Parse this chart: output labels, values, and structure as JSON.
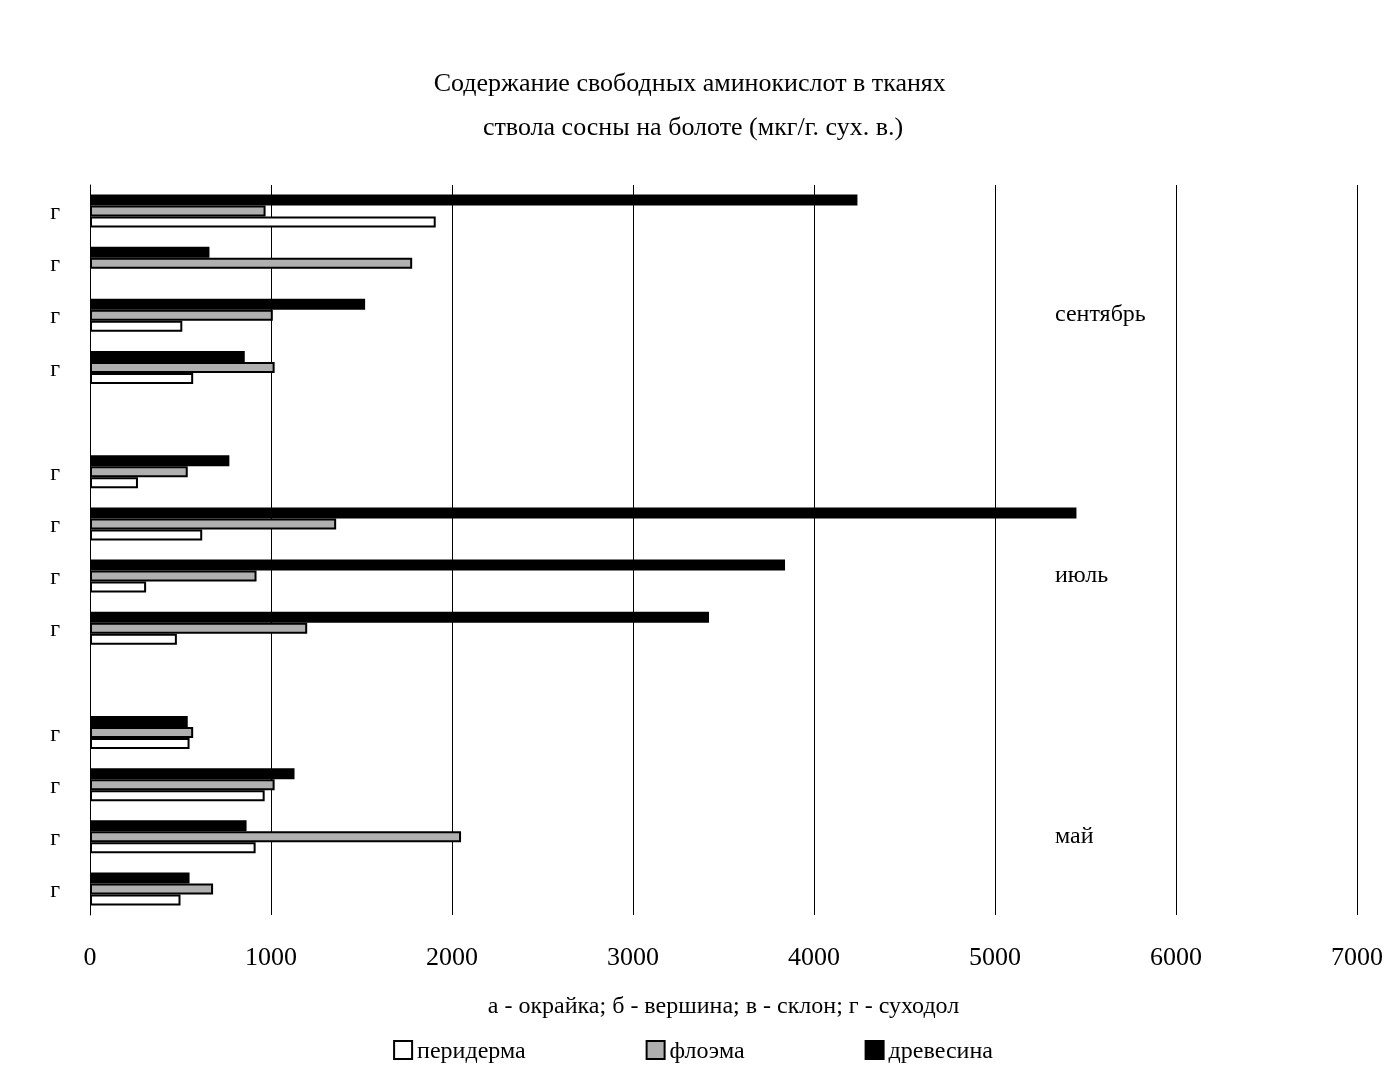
{
  "chart_data": {
    "type": "bar",
    "orientation": "horizontal",
    "title": "Содержание свободных аминокислот в тканях ствола сосны на болоте (мкг/г. сух. в.)",
    "xlabel": "а - окрайка; б - вершина; в - склон; г - суходол",
    "categories": [
      "г",
      "г",
      "г",
      "г",
      null,
      "г",
      "г",
      "г",
      "г",
      null,
      "г",
      "г",
      "г",
      "г"
    ],
    "series": [
      {
        "name": "перидерма",
        "color": "#ffffff",
        "values": [
          1910,
          null,
          510,
          570,
          null,
          265,
          620,
          310,
          480,
          null,
          550,
          965,
          915,
          500
        ]
      },
      {
        "name": "флоэма",
        "color": "#b0b0b0",
        "values": [
          970,
          1780,
          1010,
          1020,
          null,
          540,
          1360,
          920,
          1200,
          null,
          570,
          1020,
          2050,
          680
        ]
      },
      {
        "name": "древесина",
        "color": "#000000",
        "values": [
          4240,
          660,
          1520,
          855,
          null,
          770,
          5450,
          3840,
          3420,
          null,
          540,
          1130,
          865,
          550
        ]
      }
    ],
    "annotations": [
      "сентябрь",
      "июль",
      "май"
    ],
    "xlim": [
      0,
      7000
    ],
    "xticks": [
      0,
      1000,
      2000,
      3000,
      4000,
      5000,
      6000,
      7000
    ],
    "grid": "x",
    "legend": "bottom"
  }
}
